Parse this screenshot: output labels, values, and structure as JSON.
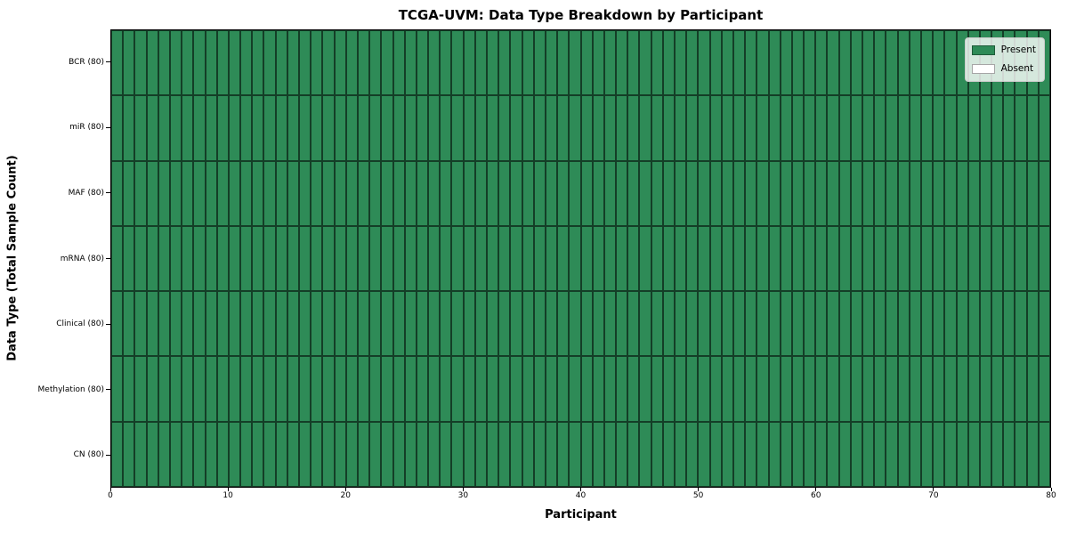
{
  "chart_data": {
    "type": "heatmap",
    "title": "TCGA-UVM: Data Type Breakdown by Participant",
    "xlabel": "Participant",
    "ylabel": "Data Type (Total Sample Count)",
    "xlim": [
      0,
      80
    ],
    "n_participants": 80,
    "x_ticks": [
      0,
      10,
      20,
      30,
      40,
      50,
      60,
      70,
      80
    ],
    "rows": [
      {
        "label": "BCR (80)",
        "data_type": "BCR",
        "total_samples": 80,
        "present_count": 80
      },
      {
        "label": "miR (80)",
        "data_type": "miR",
        "total_samples": 80,
        "present_count": 80
      },
      {
        "label": "MAF (80)",
        "data_type": "MAF",
        "total_samples": 80,
        "present_count": 80
      },
      {
        "label": "mRNA (80)",
        "data_type": "mRNA",
        "total_samples": 80,
        "present_count": 80
      },
      {
        "label": "Clinical (80)",
        "data_type": "Clinical",
        "total_samples": 80,
        "present_count": 80
      },
      {
        "label": "Methylation (80)",
        "data_type": "Methylation",
        "total_samples": 80,
        "present_count": 80
      },
      {
        "label": "CN (80)",
        "data_type": "CN",
        "total_samples": 80,
        "present_count": 80
      }
    ],
    "colors": {
      "present": "#2e8b57",
      "absent": "#ffffff",
      "cell_edge": "#000000"
    },
    "legend": {
      "position": "upper right",
      "items": [
        {
          "label": "Present",
          "color": "#2e8b57"
        },
        {
          "label": "Absent",
          "color": "#ffffff"
        }
      ]
    },
    "grid": "cell-borders",
    "all_present": true
  }
}
